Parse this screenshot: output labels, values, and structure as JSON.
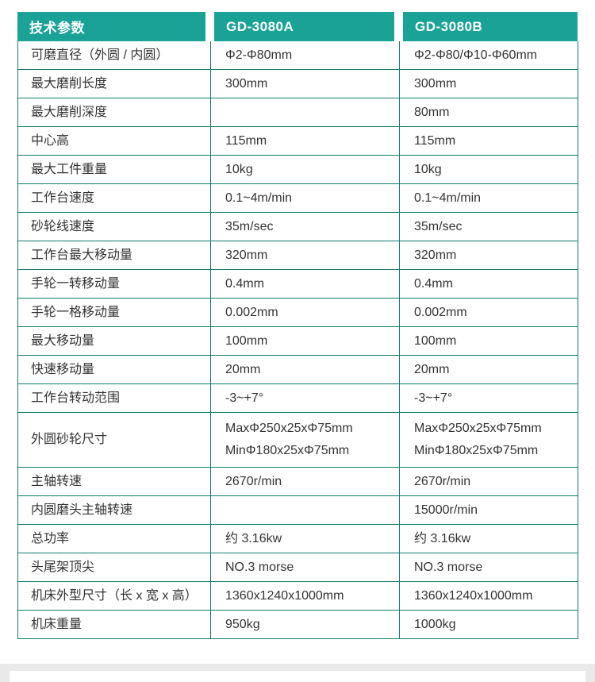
{
  "page": {
    "background": "#ffffff",
    "accent_teal": "#1aa296",
    "border_green": "#0f7d6b",
    "band_gray": "#e9e9e9"
  },
  "table": {
    "headers": [
      "技术参数",
      "GD-3080A",
      "GD-3080B"
    ],
    "rows": [
      {
        "label": "可磨直径（外圆 / 内圆）",
        "a": "Φ2-Φ80mm",
        "b": "Φ2-Φ80/Φ10-Φ60mm"
      },
      {
        "label": "最大磨削长度",
        "a": "300mm",
        "b": "300mm"
      },
      {
        "label": "最大磨削深度",
        "a": "",
        "b": "80mm"
      },
      {
        "label": "中心高",
        "a": "115mm",
        "b": "115mm"
      },
      {
        "label": "最大工件重量",
        "a": "10kg",
        "b": "10kg"
      },
      {
        "label": "工作台速度",
        "a": "0.1~4m/min",
        "b": "0.1~4m/min"
      },
      {
        "label": "砂轮线速度",
        "a": "35m/sec",
        "b": "35m/sec"
      },
      {
        "label": "工作台最大移动量",
        "a": "320mm",
        "b": "320mm"
      },
      {
        "label": "手轮一转移动量",
        "a": "0.4mm",
        "b": "0.4mm"
      },
      {
        "label": "手轮一格移动量",
        "a": "0.002mm",
        "b": "0.002mm"
      },
      {
        "label": "最大移动量",
        "a": "100mm",
        "b": "100mm"
      },
      {
        "label": "快速移动量",
        "a": "20mm",
        "b": "20mm"
      },
      {
        "label": "工作台转动范围",
        "a": "-3~+7°",
        "b": "-3~+7°"
      },
      {
        "label": "外圆砂轮尺寸",
        "a": "MaxΦ250x25xΦ75mm\nMinΦ180x25xΦ75mm",
        "b": "MaxΦ250x25xΦ75mm\nMinΦ180x25xΦ75mm"
      },
      {
        "label": "主轴转速",
        "a": "2670r/min",
        "b": "2670r/min"
      },
      {
        "label": "内圆磨头主轴转速",
        "a": "",
        "b": "15000r/min"
      },
      {
        "label": "总功率",
        "a": "约 3.16kw",
        "b": "约 3.16kw"
      },
      {
        "label": "头尾架顶尖",
        "a": "NO.3 morse",
        "b": "NO.3 morse"
      },
      {
        "label": "机床外型尺寸（长 x 宽 x 高）",
        "a": "1360x1240x1000mm",
        "b": "1360x1240x1000mm"
      },
      {
        "label": "机床重量",
        "a": "950kg",
        "b": "1000kg"
      }
    ]
  }
}
